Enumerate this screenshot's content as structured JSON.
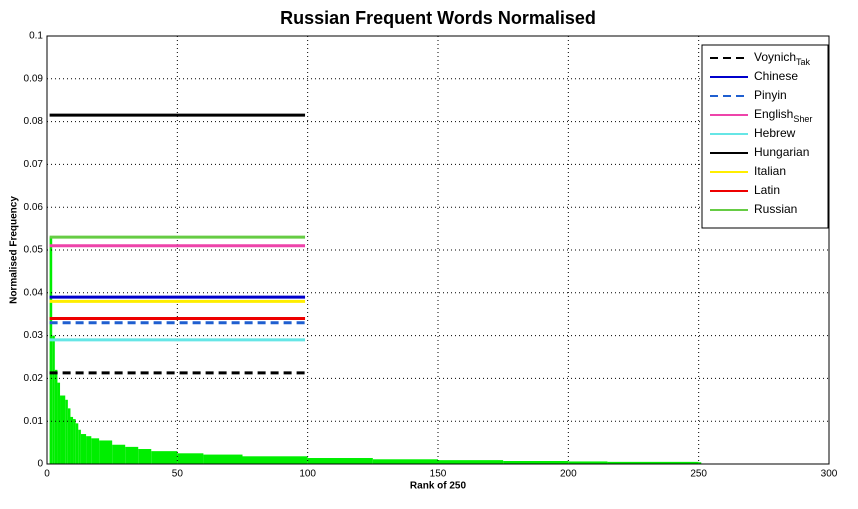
{
  "chart_data": {
    "type": "line",
    "title": "Russian Frequent Words Normalised",
    "x_label": "Rank of 250",
    "y_label": "Normalised Frequency",
    "xlim": [
      0,
      300
    ],
    "xticks": [
      0,
      50,
      100,
      150,
      200,
      250,
      300
    ],
    "ylim": [
      0,
      0.1
    ],
    "yticks": [
      0,
      0.01,
      0.02,
      0.03,
      0.04,
      0.05,
      0.06,
      0.07,
      0.08,
      0.09,
      0.1
    ],
    "grid": true,
    "legend": "top-right",
    "bars": {
      "color": "#00ee00",
      "x": [
        1,
        2,
        3,
        4,
        5,
        7,
        8,
        9,
        10,
        11,
        12,
        13,
        15,
        17,
        20,
        25,
        30,
        35,
        40,
        50,
        60,
        75,
        100,
        125,
        150,
        175,
        200,
        215,
        250
      ],
      "values": [
        0.053,
        0.03,
        0.022,
        0.019,
        0.016,
        0.015,
        0.013,
        0.011,
        0.0105,
        0.0095,
        0.008,
        0.007,
        0.0065,
        0.006,
        0.0055,
        0.0045,
        0.004,
        0.0035,
        0.003,
        0.0025,
        0.0022,
        0.0018,
        0.0014,
        0.0011,
        0.0009,
        0.0007,
        0.0006,
        0.0005,
        0.0004
      ]
    },
    "series": [
      {
        "name": "Voynich",
        "name_sub": "Tak",
        "color": "#000000",
        "dash": true,
        "x": [
          1,
          99
        ],
        "values": [
          0.0213,
          0.0213
        ]
      },
      {
        "name": "Chinese",
        "color": "#0000cc",
        "dash": false,
        "x": [
          1,
          99
        ],
        "values": [
          0.039,
          0.039
        ]
      },
      {
        "name": "Pinyin",
        "color": "#1f5fd0",
        "dash": true,
        "x": [
          1,
          99
        ],
        "values": [
          0.033,
          0.033
        ]
      },
      {
        "name": "English",
        "name_sub": "Sher",
        "color": "#ee44aa",
        "dash": false,
        "x": [
          1,
          99
        ],
        "values": [
          0.051,
          0.051
        ]
      },
      {
        "name": "Hebrew",
        "color": "#66e6e6",
        "dash": false,
        "x": [
          1,
          99
        ],
        "values": [
          0.029,
          0.029
        ]
      },
      {
        "name": "Hungarian",
        "color": "#000000",
        "dash": false,
        "x": [
          1,
          99
        ],
        "values": [
          0.0815,
          0.0815
        ]
      },
      {
        "name": "Italian",
        "color": "#ffee00",
        "dash": false,
        "x": [
          1,
          99
        ],
        "values": [
          0.038,
          0.038
        ]
      },
      {
        "name": "Latin",
        "color": "#ee0000",
        "dash": false,
        "x": [
          1,
          99
        ],
        "values": [
          0.034,
          0.034
        ]
      },
      {
        "name": "Russian",
        "color": "#66cc44",
        "dash": false,
        "x": [
          1,
          99
        ],
        "values": [
          0.053,
          0.053
        ]
      }
    ]
  }
}
